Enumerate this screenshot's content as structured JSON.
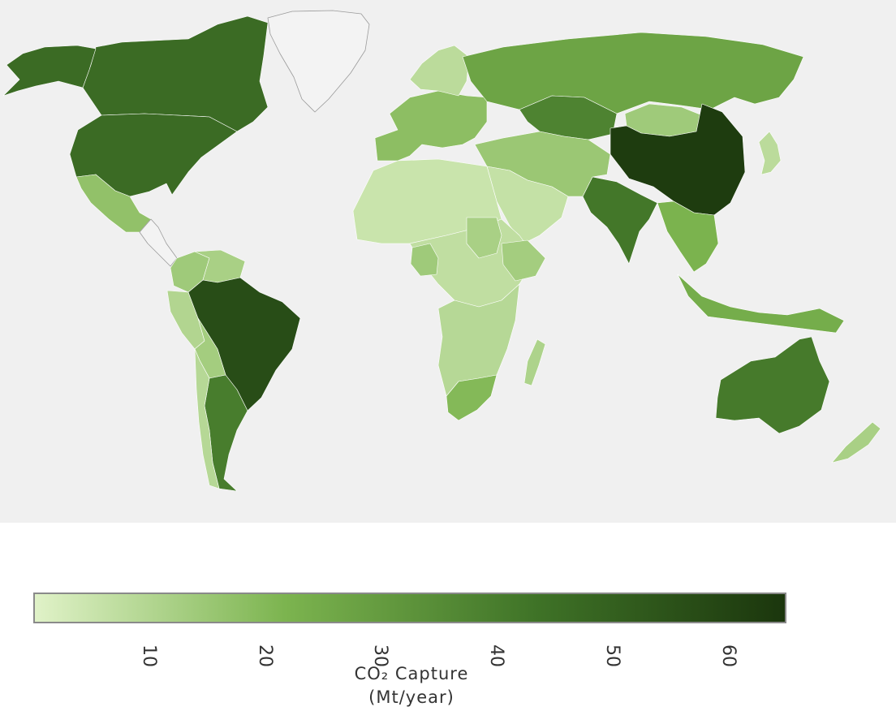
{
  "map": {
    "background": "#f0f0f0",
    "unfilled_color": "#f3f3f3",
    "regions": [
      {
        "name": "Greenland",
        "value": null
      },
      {
        "name": "Canada",
        "value": 46
      },
      {
        "name": "Alaska (USA)",
        "value": 46
      },
      {
        "name": "United States",
        "value": 46
      },
      {
        "name": "Mexico",
        "value": 17
      },
      {
        "name": "Central America",
        "value": null
      },
      {
        "name": "Colombia",
        "value": 14
      },
      {
        "name": "Venezuela",
        "value": 12
      },
      {
        "name": "Peru",
        "value": 10
      },
      {
        "name": "Brazil",
        "value": 57
      },
      {
        "name": "Bolivia",
        "value": 13
      },
      {
        "name": "Argentina",
        "value": 40
      },
      {
        "name": "Chile",
        "value": 9
      },
      {
        "name": "Western Europe",
        "value": 18
      },
      {
        "name": "Scandinavia",
        "value": 8
      },
      {
        "name": "Russia",
        "value": 27
      },
      {
        "name": "Kazakhstan",
        "value": 38
      },
      {
        "name": "Mongolia",
        "value": 14
      },
      {
        "name": "China",
        "value": 63
      },
      {
        "name": "Japan",
        "value": 8
      },
      {
        "name": "India",
        "value": 42
      },
      {
        "name": "Middle East",
        "value": 15
      },
      {
        "name": "Saudi Arabia",
        "value": 6
      },
      {
        "name": "North Africa",
        "value": 5
      },
      {
        "name": "Central Africa",
        "value": 7
      },
      {
        "name": "Nigeria",
        "value": 14
      },
      {
        "name": "Sudan",
        "value": 12
      },
      {
        "name": "Ethiopia",
        "value": 13
      },
      {
        "name": "Southern Africa",
        "value": 9
      },
      {
        "name": "South Africa",
        "value": 20
      },
      {
        "name": "Madagascar",
        "value": 11
      },
      {
        "name": "Southeast Asia",
        "value": 22
      },
      {
        "name": "Indonesia",
        "value": 24
      },
      {
        "name": "Australia",
        "value": 41
      },
      {
        "name": "New Zealand",
        "value": 12
      }
    ]
  },
  "colorbar": {
    "min": 0,
    "max": 65,
    "ticks": [
      "10",
      "20",
      "30",
      "40",
      "50",
      "60"
    ],
    "tick_values": [
      10,
      20,
      30,
      40,
      50,
      60
    ],
    "color_stops": [
      "#e0f2c8",
      "#7cb44f",
      "#3f7327",
      "#1b360d"
    ],
    "title_line1": "CO₂ Capture",
    "title_line2": "(Mt/year)"
  }
}
